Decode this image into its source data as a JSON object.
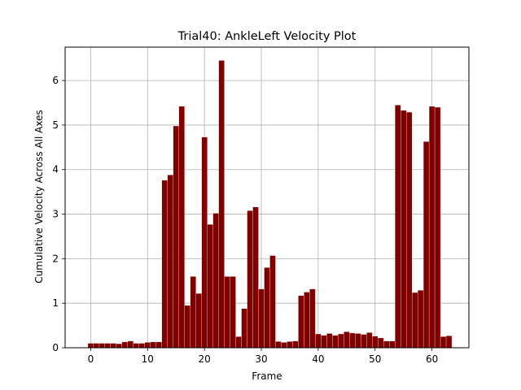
{
  "chart_data": {
    "type": "bar",
    "title": "Trial40: AnkleLeft Velocity Plot",
    "xlabel": "Frame",
    "ylabel": "Cumulative Velocity Across All Axes",
    "xlim": [
      -4.5,
      66.5
    ],
    "ylim": [
      0,
      6.75
    ],
    "xticks": [
      0,
      10,
      20,
      30,
      40,
      50,
      60
    ],
    "yticks": [
      0,
      1,
      2,
      3,
      4,
      5,
      6
    ],
    "grid": true,
    "bar_color": "#800000",
    "x": [
      0,
      1,
      2,
      3,
      4,
      5,
      6,
      7,
      8,
      9,
      10,
      11,
      12,
      13,
      14,
      15,
      16,
      17,
      18,
      19,
      20,
      21,
      22,
      23,
      24,
      25,
      26,
      27,
      28,
      29,
      30,
      31,
      32,
      33,
      34,
      35,
      36,
      37,
      38,
      39,
      40,
      41,
      42,
      43,
      44,
      45,
      46,
      47,
      48,
      49,
      50,
      51,
      52,
      53,
      54,
      55,
      56,
      57,
      58,
      59,
      60,
      61,
      62,
      63
    ],
    "values": [
      0.1,
      0.1,
      0.1,
      0.1,
      0.1,
      0.09,
      0.13,
      0.15,
      0.1,
      0.1,
      0.12,
      0.13,
      0.13,
      3.76,
      3.88,
      4.98,
      5.42,
      0.95,
      1.6,
      1.22,
      4.73,
      2.77,
      3.02,
      6.45,
      1.6,
      1.6,
      0.25,
      0.88,
      3.08,
      3.16,
      1.32,
      1.8,
      2.07,
      0.14,
      0.12,
      0.14,
      0.15,
      1.17,
      1.25,
      1.32,
      0.31,
      0.28,
      0.32,
      0.28,
      0.31,
      0.36,
      0.33,
      0.32,
      0.3,
      0.34,
      0.26,
      0.22,
      0.15,
      0.15,
      5.45,
      5.33,
      5.29,
      1.24,
      1.29,
      4.63,
      5.42,
      5.4,
      0.25,
      0.27
    ]
  }
}
